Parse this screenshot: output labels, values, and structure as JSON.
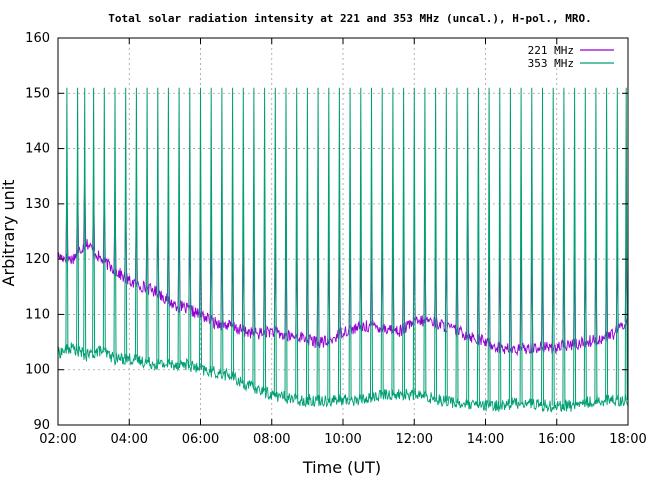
{
  "chart_data": {
    "type": "line",
    "title": "Total solar radiation intensity at 221 and 353 MHz (uncal.), H-pol., MRO.",
    "xlabel": "Time (UT)",
    "ylabel": "Arbitrary unit",
    "xlim": [
      2,
      18
    ],
    "ylim": [
      90,
      160
    ],
    "x_ticks": [
      {
        "value": 2,
        "label": "02:00"
      },
      {
        "value": 4,
        "label": "04:00"
      },
      {
        "value": 6,
        "label": "06:00"
      },
      {
        "value": 8,
        "label": "08:00"
      },
      {
        "value": 10,
        "label": "10:00"
      },
      {
        "value": 12,
        "label": "12:00"
      },
      {
        "value": 14,
        "label": "14:00"
      },
      {
        "value": 16,
        "label": "16:00"
      },
      {
        "value": 18,
        "label": "18:00"
      }
    ],
    "y_ticks": [
      90,
      100,
      110,
      120,
      130,
      140,
      150,
      160
    ],
    "grid": true,
    "legend_position": "top-right",
    "series": [
      {
        "name": "221 MHz",
        "color": "#9400d3",
        "baseline": [
          [
            2.0,
            120.5
          ],
          [
            2.4,
            120
          ],
          [
            2.8,
            123
          ],
          [
            3.2,
            120
          ],
          [
            3.6,
            118
          ],
          [
            4.0,
            116
          ],
          [
            4.4,
            115
          ],
          [
            4.8,
            114
          ],
          [
            5.2,
            112
          ],
          [
            5.6,
            111
          ],
          [
            6.0,
            110
          ],
          [
            6.4,
            108.5
          ],
          [
            6.8,
            108
          ],
          [
            7.2,
            107
          ],
          [
            7.6,
            106.5
          ],
          [
            8.0,
            107
          ],
          [
            8.4,
            106
          ],
          [
            8.8,
            106
          ],
          [
            9.2,
            105
          ],
          [
            9.6,
            105
          ],
          [
            10.0,
            107
          ],
          [
            10.4,
            107.5
          ],
          [
            10.8,
            108
          ],
          [
            11.2,
            107.5
          ],
          [
            11.6,
            107
          ],
          [
            12.0,
            108.5
          ],
          [
            12.4,
            109
          ],
          [
            12.8,
            108
          ],
          [
            13.2,
            107
          ],
          [
            13.6,
            106
          ],
          [
            14.0,
            105
          ],
          [
            14.4,
            104
          ],
          [
            14.8,
            103.5
          ],
          [
            15.2,
            104
          ],
          [
            15.6,
            104
          ],
          [
            16.0,
            104
          ],
          [
            16.4,
            104.5
          ],
          [
            16.8,
            105
          ],
          [
            17.2,
            105.5
          ],
          [
            17.6,
            106.5
          ],
          [
            18.0,
            109
          ]
        ],
        "spikes": [
          [
            2.25,
            133
          ],
          [
            2.55,
            134
          ],
          [
            2.75,
            136
          ],
          [
            3.0,
            133
          ],
          [
            3.3,
            132
          ],
          [
            3.6,
            131
          ],
          [
            3.9,
            130
          ],
          [
            4.2,
            130
          ],
          [
            4.5,
            129
          ],
          [
            4.8,
            128
          ],
          [
            5.1,
            128
          ],
          [
            5.4,
            127
          ],
          [
            5.7,
            127
          ],
          [
            6.0,
            126
          ],
          [
            6.3,
            126
          ],
          [
            6.6,
            125
          ],
          [
            6.9,
            125
          ],
          [
            7.2,
            125
          ],
          [
            7.5,
            124
          ],
          [
            7.8,
            124
          ],
          [
            8.1,
            124
          ],
          [
            8.4,
            124
          ],
          [
            8.7,
            123
          ],
          [
            9.0,
            124
          ],
          [
            9.3,
            123
          ],
          [
            9.6,
            123
          ],
          [
            9.9,
            124
          ],
          [
            10.2,
            123
          ],
          [
            10.5,
            123
          ],
          [
            10.8,
            123
          ],
          [
            11.1,
            123
          ],
          [
            11.4,
            123
          ],
          [
            11.7,
            123
          ],
          [
            12.0,
            123
          ],
          [
            12.3,
            123
          ],
          [
            12.6,
            122
          ],
          [
            12.9,
            122
          ],
          [
            13.2,
            122
          ],
          [
            13.5,
            137
          ],
          [
            13.8,
            122
          ],
          [
            14.1,
            122
          ],
          [
            14.4,
            122
          ],
          [
            14.7,
            122
          ],
          [
            15.0,
            122
          ],
          [
            15.3,
            122
          ],
          [
            15.6,
            122
          ],
          [
            15.9,
            122
          ],
          [
            16.2,
            121
          ],
          [
            16.5,
            121
          ],
          [
            16.8,
            121
          ],
          [
            17.1,
            121
          ],
          [
            17.4,
            122
          ],
          [
            17.7,
            122
          ],
          [
            17.95,
            123
          ]
        ]
      },
      {
        "name": "353 MHz",
        "color": "#009e73",
        "baseline": [
          [
            2.0,
            103
          ],
          [
            2.4,
            104
          ],
          [
            2.8,
            102.5
          ],
          [
            3.2,
            103.5
          ],
          [
            3.6,
            102
          ],
          [
            4.0,
            102
          ],
          [
            4.4,
            101.5
          ],
          [
            4.8,
            101
          ],
          [
            5.2,
            101
          ],
          [
            5.6,
            101
          ],
          [
            6.0,
            100
          ],
          [
            6.4,
            99.5
          ],
          [
            6.8,
            99
          ],
          [
            7.2,
            97.5
          ],
          [
            7.6,
            96.5
          ],
          [
            8.0,
            95.5
          ],
          [
            8.4,
            95
          ],
          [
            8.8,
            94.5
          ],
          [
            9.2,
            94.5
          ],
          [
            9.6,
            94.5
          ],
          [
            10.0,
            94.5
          ],
          [
            10.4,
            94.5
          ],
          [
            10.8,
            95
          ],
          [
            11.2,
            95.5
          ],
          [
            11.6,
            95.5
          ],
          [
            12.0,
            95.5
          ],
          [
            12.4,
            95
          ],
          [
            12.8,
            94.5
          ],
          [
            13.2,
            94
          ],
          [
            13.6,
            93.5
          ],
          [
            14.0,
            93.5
          ],
          [
            14.4,
            93.5
          ],
          [
            14.8,
            94
          ],
          [
            15.2,
            94
          ],
          [
            15.6,
            93.5
          ],
          [
            16.0,
            93.5
          ],
          [
            16.4,
            93.5
          ],
          [
            16.8,
            94
          ],
          [
            17.2,
            94.5
          ],
          [
            17.6,
            94.5
          ],
          [
            18.0,
            94.5
          ]
        ],
        "spikes": [
          [
            2.25,
            151
          ],
          [
            2.55,
            151
          ],
          [
            2.75,
            151
          ],
          [
            3.0,
            151
          ],
          [
            3.3,
            151
          ],
          [
            3.6,
            151
          ],
          [
            3.9,
            151
          ],
          [
            4.2,
            151
          ],
          [
            4.5,
            151
          ],
          [
            4.8,
            151
          ],
          [
            5.1,
            151
          ],
          [
            5.4,
            151
          ],
          [
            5.7,
            151
          ],
          [
            6.0,
            151
          ],
          [
            6.3,
            151
          ],
          [
            6.6,
            151
          ],
          [
            6.9,
            151
          ],
          [
            7.2,
            151
          ],
          [
            7.5,
            151
          ],
          [
            7.8,
            151
          ],
          [
            8.1,
            151
          ],
          [
            8.4,
            151
          ],
          [
            8.7,
            151
          ],
          [
            9.0,
            151
          ],
          [
            9.3,
            151
          ],
          [
            9.6,
            151
          ],
          [
            9.9,
            151
          ],
          [
            10.2,
            151
          ],
          [
            10.5,
            151
          ],
          [
            10.8,
            151
          ],
          [
            11.1,
            151
          ],
          [
            11.4,
            151
          ],
          [
            11.7,
            151
          ],
          [
            12.0,
            151
          ],
          [
            12.3,
            151
          ],
          [
            12.6,
            151
          ],
          [
            12.9,
            151
          ],
          [
            13.2,
            151
          ],
          [
            13.5,
            151
          ],
          [
            13.8,
            151
          ],
          [
            14.1,
            151
          ],
          [
            14.4,
            151
          ],
          [
            14.7,
            151
          ],
          [
            15.0,
            151
          ],
          [
            15.3,
            151
          ],
          [
            15.6,
            151
          ],
          [
            15.9,
            151
          ],
          [
            16.2,
            151
          ],
          [
            16.5,
            151
          ],
          [
            16.8,
            151
          ],
          [
            17.1,
            151
          ],
          [
            17.4,
            151
          ],
          [
            17.7,
            151
          ],
          [
            17.95,
            151
          ]
        ]
      }
    ]
  }
}
